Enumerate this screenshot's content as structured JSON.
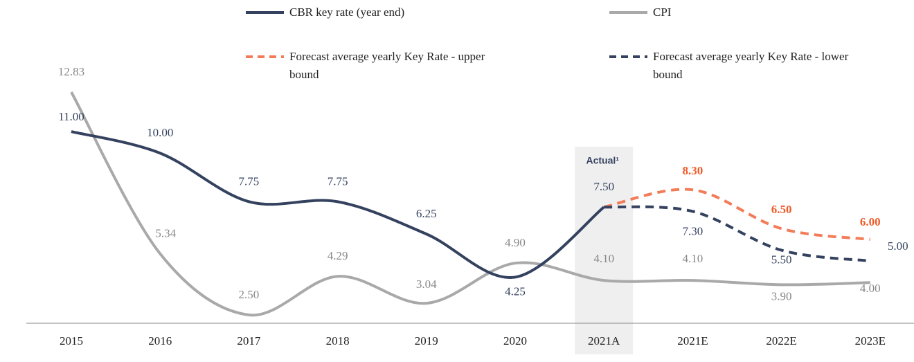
{
  "chart_data": {
    "type": "line",
    "categories": [
      "2015",
      "2016",
      "2017",
      "2018",
      "2019",
      "2020",
      "2021A",
      "2021E",
      "2022E",
      "2023E"
    ],
    "annotation": "Actual¹",
    "series": [
      {
        "name": "CBR key rate (year end)",
        "color": "#34425f",
        "dashed": false,
        "values": [
          11.0,
          10.0,
          7.75,
          7.75,
          6.25,
          4.25,
          7.5,
          null,
          null,
          null
        ],
        "value_labels": [
          "11.00",
          "10.00",
          "7.75",
          "7.75",
          "6.25",
          "4.25",
          "7.50",
          null,
          null,
          null
        ]
      },
      {
        "name": "CPI",
        "color": "#a9a9a9",
        "dashed": false,
        "values": [
          12.83,
          5.34,
          2.5,
          4.29,
          3.04,
          4.9,
          4.1,
          4.1,
          3.9,
          4.0
        ],
        "value_labels": [
          "12.83",
          "5.34",
          "2.50",
          "4.29",
          "3.04",
          "4.90",
          "4.10",
          "4.10",
          "3.90",
          "4.00"
        ]
      },
      {
        "name": "Forecast average yearly Key Rate - upper bound",
        "color": "#f37c58",
        "dashed": true,
        "values": [
          null,
          null,
          null,
          null,
          null,
          null,
          7.5,
          8.3,
          6.5,
          6.0
        ],
        "value_labels": [
          null,
          null,
          null,
          null,
          null,
          null,
          null,
          "8.30",
          "6.50",
          "6.00"
        ]
      },
      {
        "name": "Forecast average yearly Key Rate - lower bound",
        "color": "#34425f",
        "dashed": true,
        "values": [
          null,
          null,
          null,
          null,
          null,
          null,
          7.5,
          7.3,
          5.5,
          5.0
        ],
        "value_labels": [
          null,
          null,
          null,
          null,
          null,
          null,
          null,
          "7.30",
          "5.50",
          "5.00"
        ]
      }
    ]
  }
}
